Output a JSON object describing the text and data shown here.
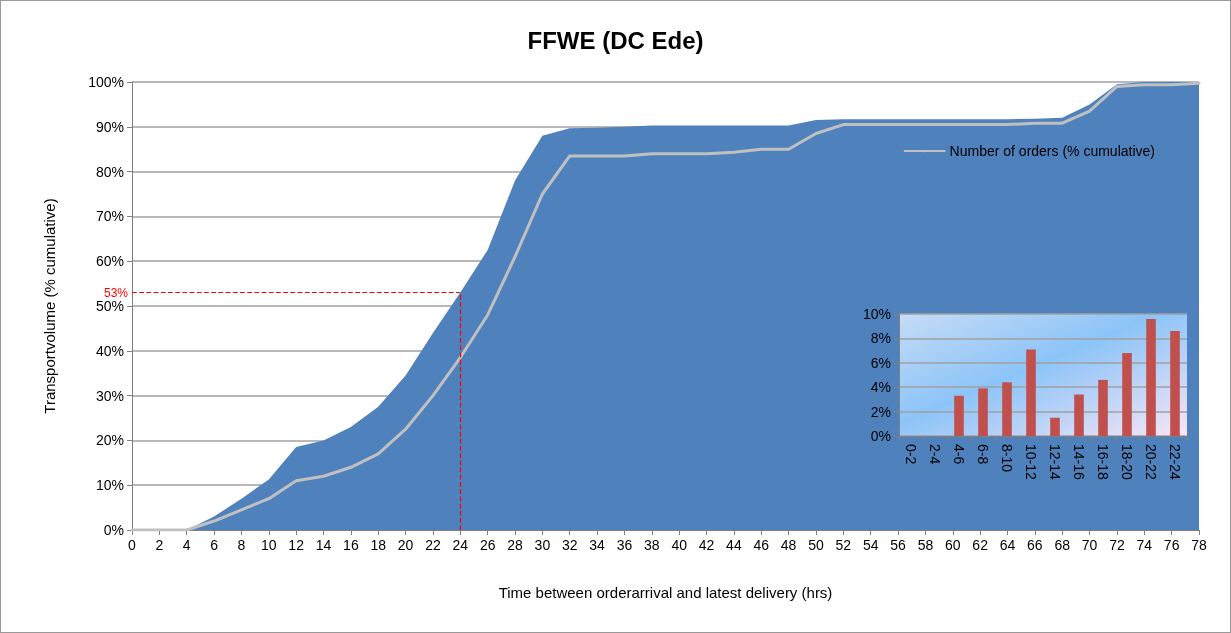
{
  "chart_data": [
    {
      "type": "area",
      "title": "FFWE (DC Ede)",
      "xlabel": "Time between orderarrival and latest delivery (hrs)",
      "ylabel": "Transportvolume (% cumulative)",
      "x": [
        0,
        2,
        4,
        6,
        8,
        10,
        12,
        14,
        16,
        18,
        20,
        22,
        24,
        26,
        28,
        30,
        32,
        34,
        36,
        38,
        40,
        42,
        44,
        46,
        48,
        50,
        52,
        54,
        56,
        58,
        60,
        62,
        64,
        66,
        68,
        70,
        72,
        74,
        76,
        78
      ],
      "series": [
        {
          "color": "#4f81bd",
          "values": [
            0,
            0,
            0,
            3,
            7,
            11.3,
            18.5,
            20,
            23,
            27.5,
            34.5,
            44,
            53,
            62.5,
            78,
            88,
            89.7,
            89.8,
            90,
            90.3,
            90.3,
            90.3,
            90.3,
            90.3,
            90.3,
            91.5,
            91.7,
            91.7,
            91.7,
            91.7,
            91.7,
            91.7,
            91.7,
            91.8,
            92,
            95,
            99.5,
            100,
            100,
            100
          ]
        },
        {
          "type": "line",
          "name": "Number of orders (% cumulative)",
          "color": "#c0c0c0",
          "values": [
            0,
            0,
            0,
            2,
            4.5,
            7,
            11,
            12,
            14,
            17,
            22.5,
            30,
            38.5,
            48,
            61,
            75,
            83.5,
            83.5,
            83.5,
            84,
            84,
            84,
            84.3,
            85,
            85,
            88.5,
            90.5,
            90.5,
            90.5,
            90.5,
            90.5,
            90.5,
            90.5,
            90.8,
            90.8,
            93.5,
            99,
            99.4,
            99.4,
            99.7
          ]
        }
      ],
      "xlim": [
        0,
        78
      ],
      "xticks": [
        0,
        2,
        4,
        6,
        8,
        10,
        12,
        14,
        16,
        18,
        20,
        22,
        24,
        26,
        28,
        30,
        32,
        34,
        36,
        38,
        40,
        42,
        44,
        46,
        48,
        50,
        52,
        54,
        56,
        58,
        60,
        62,
        64,
        66,
        68,
        70,
        72,
        74,
        76,
        78
      ],
      "ylim": [
        0,
        100
      ],
      "yticks": [
        {
          "value": 0,
          "label": "0%"
        },
        {
          "value": 10,
          "label": "10%"
        },
        {
          "value": 20,
          "label": "20%"
        },
        {
          "value": 30,
          "label": "30%"
        },
        {
          "value": 40,
          "label": "40%"
        },
        {
          "value": 50,
          "label": "50%"
        },
        {
          "value": 60,
          "label": "60%"
        },
        {
          "value": 70,
          "label": "70%"
        },
        {
          "value": 80,
          "label": "80%"
        },
        {
          "value": 90,
          "label": "90%"
        },
        {
          "value": 100,
          "label": "100%"
        }
      ],
      "grid": "y",
      "legend": "top right",
      "marker": "none",
      "ref_lines": [
        {
          "axis": "y",
          "value": 53,
          "label": "53%",
          "color": "#ff0000",
          "line_style": "dashed"
        },
        {
          "axis": "x",
          "value": 24,
          "color": "#ff0000",
          "line_style": "dashed"
        }
      ]
    },
    {
      "type": "bar",
      "categories": [
        "0-2",
        "2-4",
        "4-6",
        "6-8",
        "8-10",
        "10-12",
        "12-14",
        "14-16",
        "16-18",
        "18-20",
        "20-22",
        "22-24"
      ],
      "values": [
        0,
        0,
        3.3,
        3.9,
        4.4,
        7.1,
        1.5,
        3.4,
        4.6,
        6.8,
        9.6,
        8.6
      ],
      "color": "#c0504d",
      "ylim": [
        0,
        10
      ],
      "yticks": [
        {
          "value": 0,
          "label": "0%"
        },
        {
          "value": 2,
          "label": "2%"
        },
        {
          "value": 4,
          "label": "4%"
        },
        {
          "value": 6,
          "label": "6%"
        },
        {
          "value": 8,
          "label": "8%"
        },
        {
          "value": 10,
          "label": "10%"
        }
      ],
      "grid": "y"
    }
  ]
}
